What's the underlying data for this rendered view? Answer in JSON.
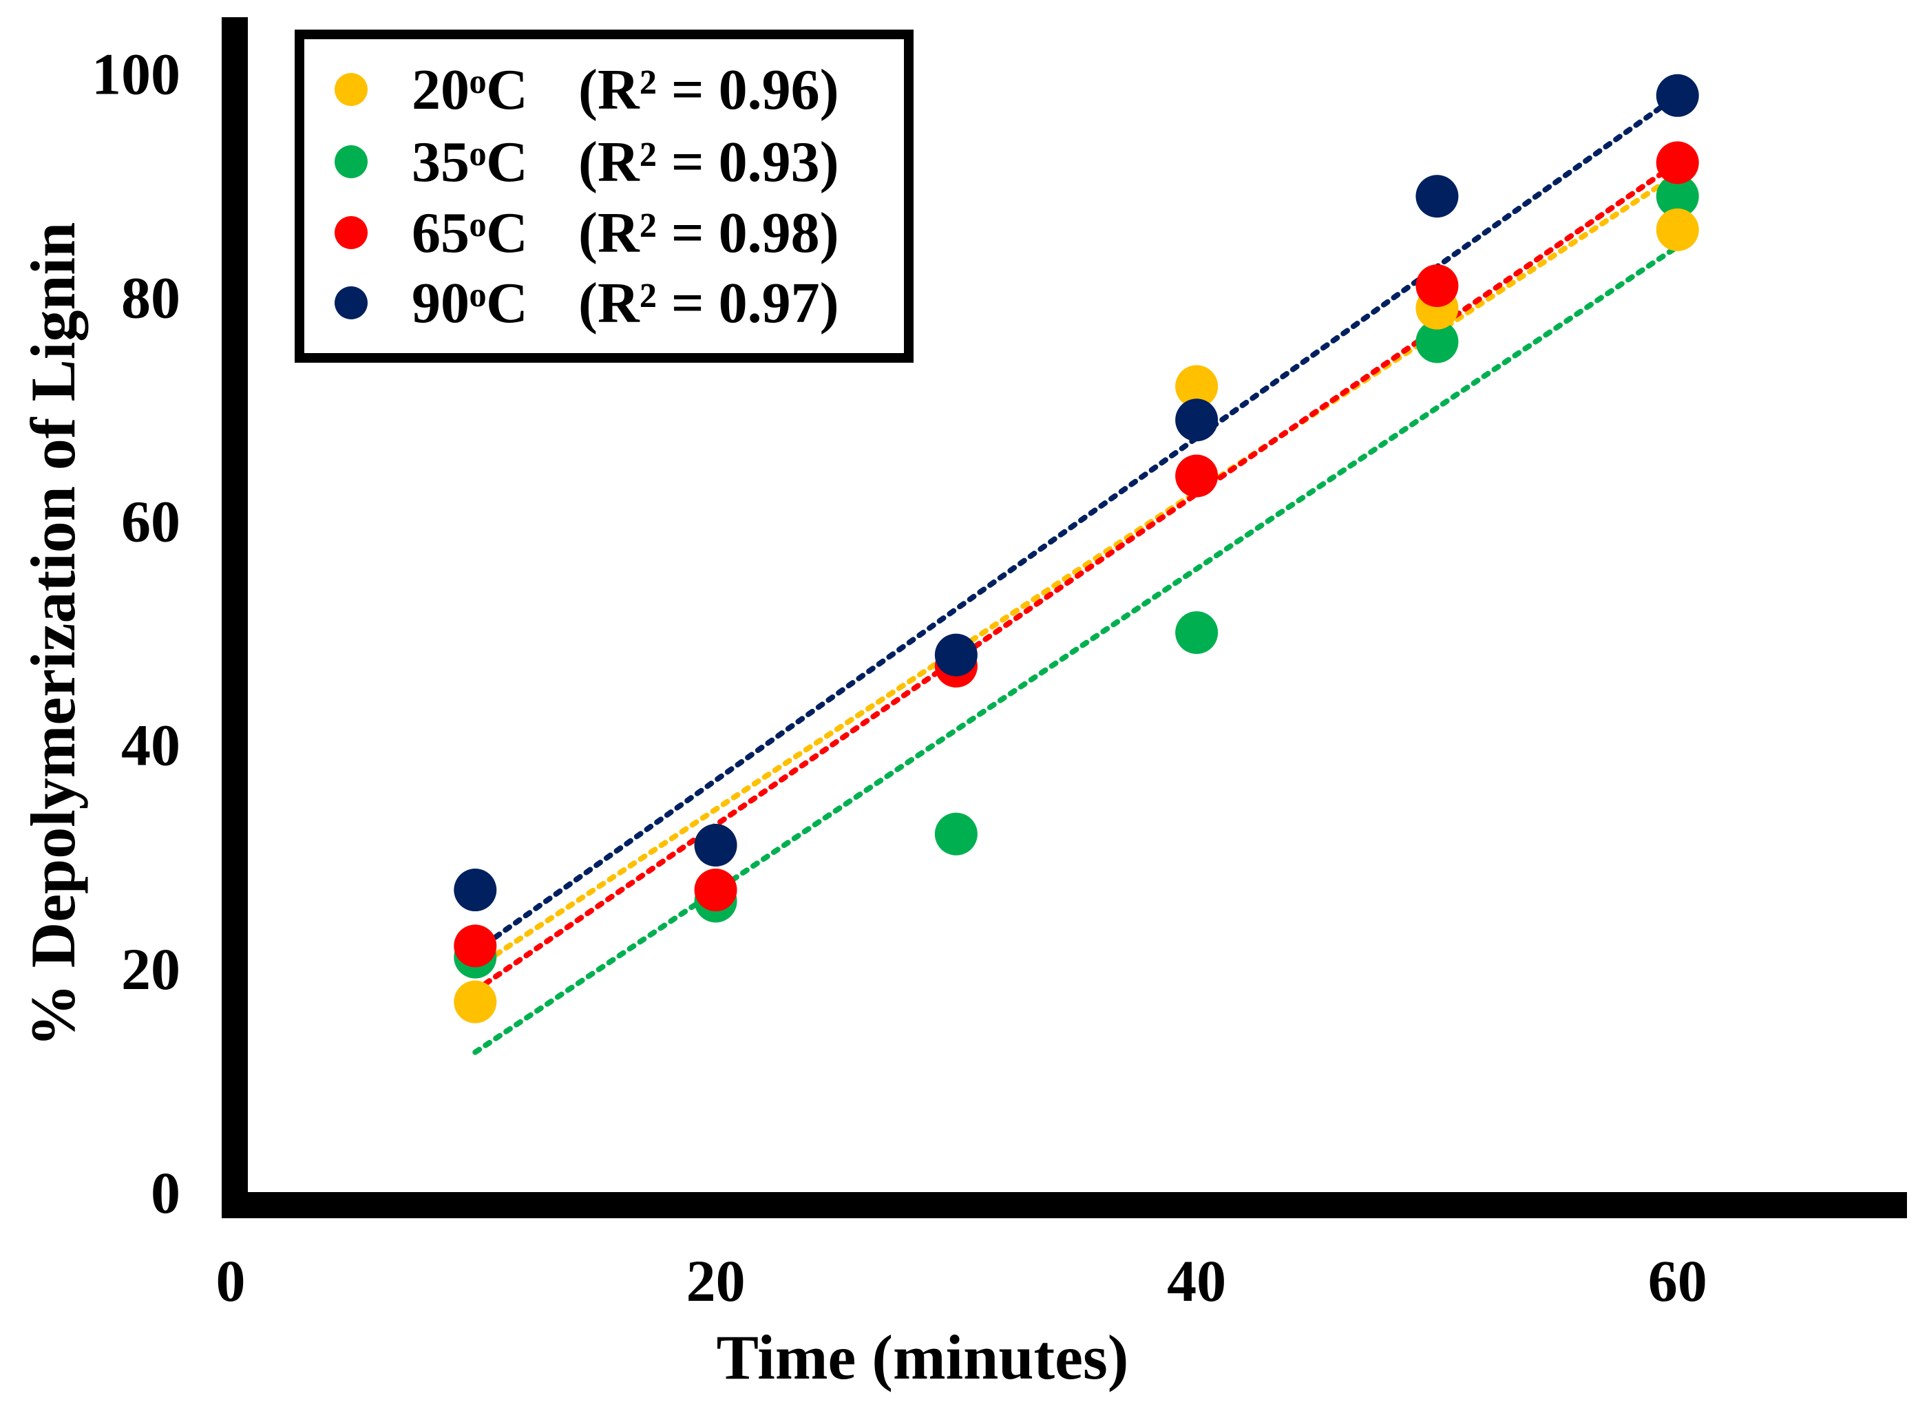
{
  "chart_data": {
    "type": "scatter",
    "title": "",
    "xlabel": "Time (minutes)",
    "ylabel": "% Depolymerization of Lignin",
    "xlim": [
      0,
      70
    ],
    "ylim": [
      0,
      105
    ],
    "xticks": [
      0,
      20,
      40,
      60
    ],
    "yticks": [
      0,
      20,
      40,
      60,
      80,
      100
    ],
    "legend_position": "top-left",
    "grid": false,
    "series": [
      {
        "name": "20°C",
        "label": "20ᵒC",
        "r2_label": "(R² = 0.96)",
        "color": "#FFC000",
        "x": [
          10,
          20,
          30,
          40,
          50,
          60
        ],
        "y": [
          17,
          31,
          47,
          72,
          79,
          86
        ],
        "trendline": {
          "x": [
            10,
            60
          ],
          "y": [
            20,
            91
          ]
        }
      },
      {
        "name": "35°C",
        "label": "35ᵒC",
        "r2_label": "(R² = 0.93)",
        "color": "#00B050",
        "x": [
          10,
          20,
          30,
          40,
          50,
          60
        ],
        "y": [
          21,
          26,
          32,
          50,
          76,
          89
        ],
        "trendline": {
          "x": [
            10,
            60
          ],
          "y": [
            12.5,
            84.5
          ]
        }
      },
      {
        "name": "65°C",
        "label": "65ᵒC",
        "r2_label": "(R² = 0.98)",
        "color": "#FF0000",
        "x": [
          10,
          20,
          30,
          40,
          50,
          60
        ],
        "y": [
          22,
          27,
          47,
          64,
          81,
          92
        ],
        "trendline": {
          "x": [
            10,
            60
          ],
          "y": [
            18,
            92
          ]
        }
      },
      {
        "name": "90°C",
        "label": "90ᵒC",
        "r2_label": "(R² = 0.97)",
        "color": "#002060",
        "x": [
          10,
          20,
          30,
          40,
          50,
          60
        ],
        "y": [
          27,
          31,
          48,
          69,
          89,
          98
        ],
        "trendline": {
          "x": [
            10,
            60
          ],
          "y": [
            21.5,
            98
          ]
        }
      }
    ]
  }
}
